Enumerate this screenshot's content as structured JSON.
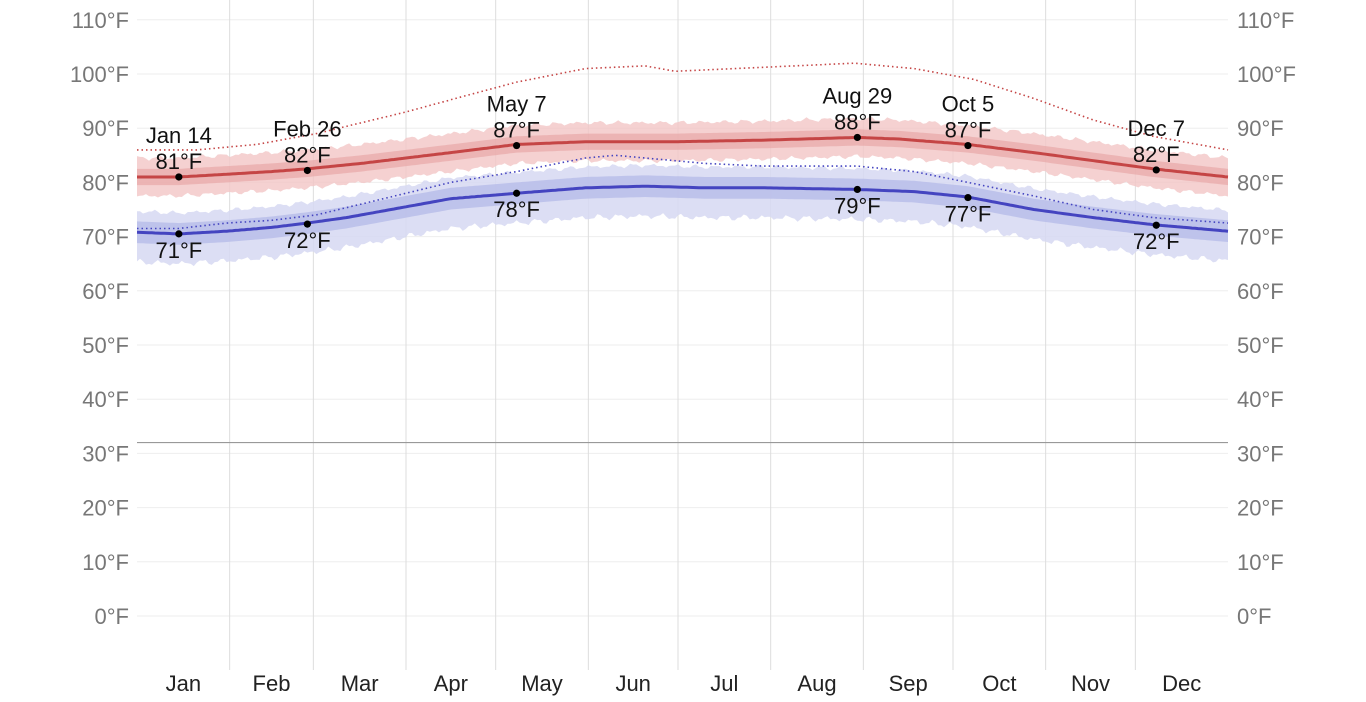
{
  "chart_data": {
    "type": "area",
    "title": "",
    "xlabel": "",
    "ylabel": "",
    "ylim": [
      -10,
      112
    ],
    "x_domain": [
      0,
      365
    ],
    "grid": true,
    "legend": "none",
    "y_ticks": [
      {
        "value": 0,
        "label": "0°F"
      },
      {
        "value": 10,
        "label": "10°F"
      },
      {
        "value": 20,
        "label": "20°F"
      },
      {
        "value": 30,
        "label": "30°F"
      },
      {
        "value": 40,
        "label": "40°F"
      },
      {
        "value": 50,
        "label": "50°F"
      },
      {
        "value": 60,
        "label": "60°F"
      },
      {
        "value": 70,
        "label": "70°F"
      },
      {
        "value": 80,
        "label": "80°F"
      },
      {
        "value": 90,
        "label": "90°F"
      },
      {
        "value": 100,
        "label": "100°F"
      },
      {
        "value": 110,
        "label": "110°F"
      }
    ],
    "freezing_line": 32,
    "months": [
      "Jan",
      "Feb",
      "Mar",
      "Apr",
      "May",
      "Jun",
      "Jul",
      "Aug",
      "Sep",
      "Oct",
      "Nov",
      "Dec"
    ],
    "month_starts": [
      0,
      31,
      59,
      90,
      120,
      151,
      181,
      212,
      243,
      273,
      304,
      334,
      365
    ],
    "colors": {
      "high_line": "#c54545",
      "high_band_outer": "#f3c6c6",
      "high_band_inner": "#e8a9a9",
      "low_line": "#4444c0",
      "low_band_outer": "#d6d8f2",
      "low_band_inner": "#b7bbe8",
      "high_record": "#c54545",
      "low_record": "#4444c0",
      "grid": "#dddddd",
      "freezing": "#999999",
      "tick_text": "#777777"
    },
    "series": [
      {
        "key": "avg_high",
        "x": [
          0,
          14,
          30,
          45,
          57,
          75,
          90,
          105,
          127,
          150,
          180,
          210,
          241,
          255,
          278,
          300,
          320,
          340,
          365
        ],
        "y": [
          81,
          81,
          81.5,
          82,
          82.5,
          83.5,
          84.5,
          85.5,
          87,
          87.5,
          87.5,
          87.8,
          88.3,
          88,
          87,
          85.5,
          84,
          82.5,
          81
        ],
        "band_inner_offset": 1.5,
        "band_outer_offset": 3.5
      },
      {
        "key": "avg_low",
        "x": [
          0,
          14,
          30,
          45,
          57,
          70,
          90,
          105,
          127,
          150,
          170,
          190,
          210,
          241,
          260,
          278,
          300,
          320,
          340,
          365
        ],
        "y": [
          70.8,
          70.5,
          71,
          71.7,
          72.5,
          73.5,
          75.5,
          77,
          78,
          79,
          79.3,
          79,
          79,
          78.7,
          78.3,
          77.3,
          75,
          73.5,
          72.2,
          71
        ],
        "band_inner_offset": 2,
        "band_outer_offset": 5.5
      },
      {
        "key": "high_record_dotted",
        "x": [
          0,
          20,
          40,
          60,
          75,
          90,
          110,
          127,
          150,
          170,
          180,
          200,
          220,
          240,
          260,
          280,
          300,
          320,
          340,
          365
        ],
        "y": [
          86,
          86,
          87,
          89,
          91,
          93,
          96,
          98.5,
          101,
          101.5,
          100.5,
          101,
          101.5,
          102,
          101,
          99,
          95.5,
          91.5,
          88.5,
          86
        ]
      },
      {
        "key": "low_record_dotted",
        "x": [
          0,
          14,
          30,
          45,
          60,
          75,
          90,
          105,
          127,
          150,
          160,
          170,
          190,
          210,
          241,
          260,
          278,
          300,
          320,
          340,
          365
        ],
        "y": [
          71.5,
          71.5,
          72.5,
          73,
          74,
          76,
          78,
          80,
          82,
          84.5,
          85,
          84.5,
          83.5,
          83,
          83,
          82,
          80,
          77.5,
          75,
          73.5,
          72.5
        ]
      }
    ],
    "annotations": [
      {
        "x": 14,
        "y": 81,
        "date": "Jan 14",
        "text": "81°F",
        "pos": "above"
      },
      {
        "x": 14,
        "y": 70.5,
        "date": "",
        "text": "71°F",
        "pos": "below"
      },
      {
        "x": 57,
        "y": 82.2,
        "date": "Feb 26",
        "text": "82°F",
        "pos": "above"
      },
      {
        "x": 57,
        "y": 72.3,
        "date": "",
        "text": "72°F",
        "pos": "below"
      },
      {
        "x": 127,
        "y": 86.8,
        "date": "May 7",
        "text": "87°F",
        "pos": "above"
      },
      {
        "x": 127,
        "y": 78,
        "date": "",
        "text": "78°F",
        "pos": "below"
      },
      {
        "x": 241,
        "y": 88.3,
        "date": "Aug 29",
        "text": "88°F",
        "pos": "above"
      },
      {
        "x": 241,
        "y": 78.7,
        "date": "",
        "text": "79°F",
        "pos": "below"
      },
      {
        "x": 278,
        "y": 86.8,
        "date": "Oct 5",
        "text": "87°F",
        "pos": "above"
      },
      {
        "x": 278,
        "y": 77.2,
        "date": "",
        "text": "77°F",
        "pos": "below"
      },
      {
        "x": 341,
        "y": 82.3,
        "date": "Dec 7",
        "text": "82°F",
        "pos": "above"
      },
      {
        "x": 341,
        "y": 72.1,
        "date": "",
        "text": "72°F",
        "pos": "below"
      }
    ]
  }
}
